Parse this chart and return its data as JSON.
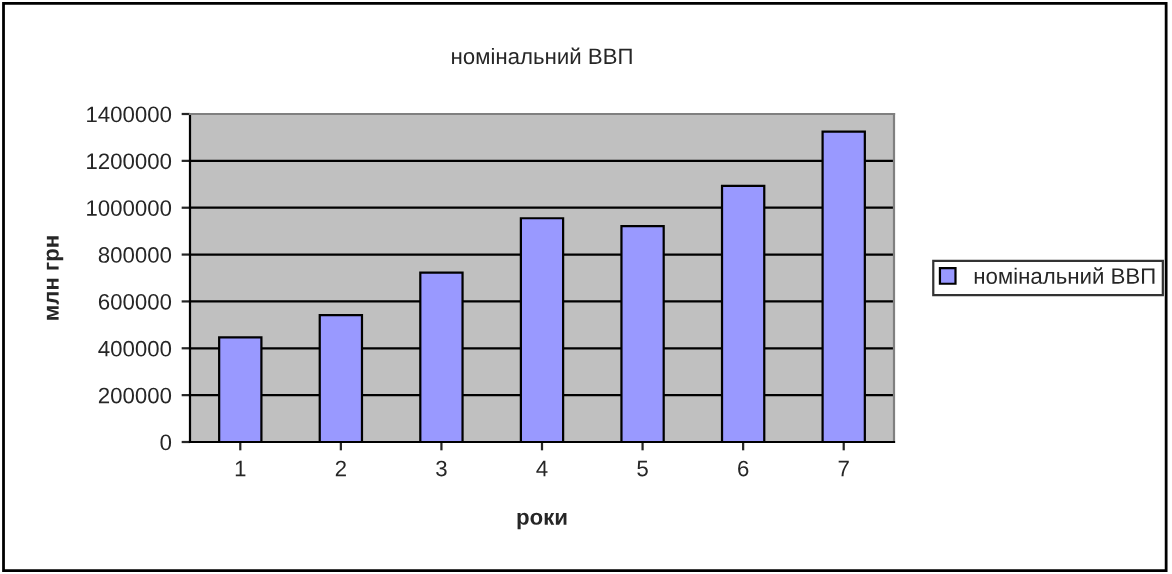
{
  "chart_data": {
    "type": "bar",
    "title": "номінальний ВВП",
    "xlabel": "роки",
    "ylabel": "млн грн",
    "categories": [
      "1",
      "2",
      "3",
      "4",
      "5",
      "6",
      "7"
    ],
    "series": [
      {
        "name": "номінальний ВВП",
        "color": "#9999ff",
        "values": [
          447000,
          542000,
          723000,
          955000,
          921000,
          1093000,
          1325000
        ]
      }
    ],
    "ylim": [
      0,
      1400000
    ],
    "yticks": [
      0,
      200000,
      400000,
      600000,
      800000,
      1000000,
      1200000,
      1400000
    ],
    "grid": "y",
    "legend": "right"
  }
}
